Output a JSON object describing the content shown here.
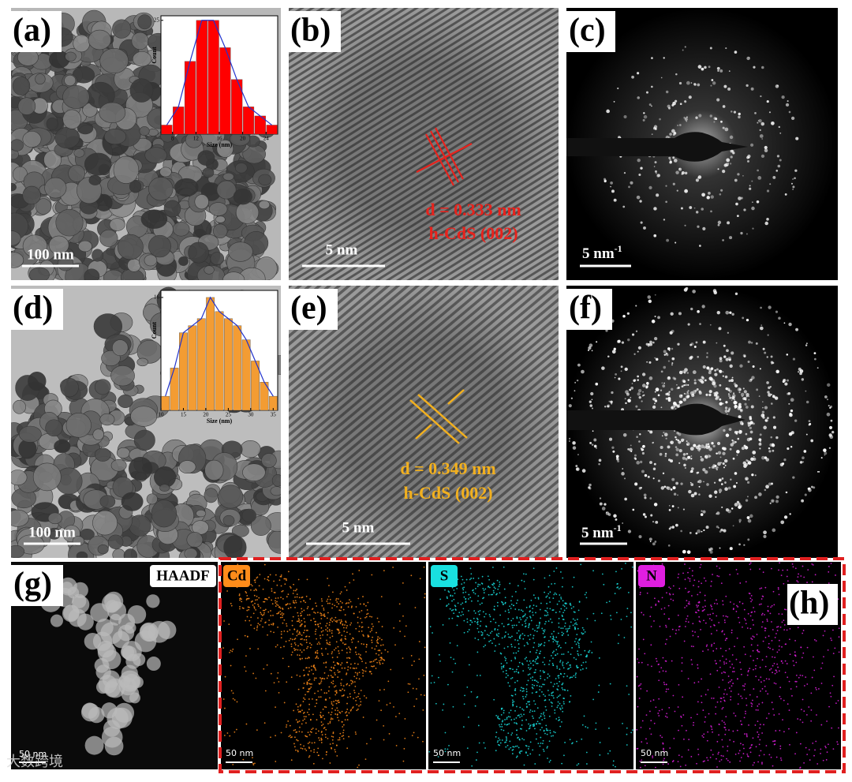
{
  "panels": {
    "a": {
      "label": "(a)",
      "scale_bar": "100 nm",
      "inset": {
        "type": "histogram",
        "x_label": "Size (nm)",
        "y_label": "Count",
        "bins": [
          6,
          8,
          10,
          12,
          14,
          16,
          18,
          20,
          22,
          24,
          26
        ],
        "values": [
          2,
          6,
          16,
          25,
          25,
          19,
          12,
          6,
          4,
          2
        ],
        "color": "#ff0000",
        "xlim": [
          6,
          26
        ],
        "ylim": [
          0,
          26
        ],
        "xticks": [
          8,
          12,
          16,
          20,
          24
        ],
        "yticks": [
          25
        ]
      }
    },
    "b": {
      "label": "(b)",
      "scale_bar": "5 nm",
      "annotation": [
        "d = 0.333 nm",
        "h-CdS (002)"
      ],
      "color": "#e8221c"
    },
    "c": {
      "label": "(c)",
      "scale_bar": {
        "text": "5 nm",
        "superscript": "-1"
      }
    },
    "d": {
      "label": "(d)",
      "scale_bar": "100 nm",
      "inset": {
        "type": "histogram",
        "x_label": "Size (nm)",
        "y_label": "Count",
        "bins": [
          10,
          12,
          14,
          16,
          18,
          20,
          22,
          24,
          26,
          28,
          30,
          32,
          34,
          36
        ],
        "values": [
          2,
          6,
          11,
          12,
          13,
          16,
          14,
          13,
          12,
          10,
          7,
          4,
          2
        ],
        "color": "#f39c33",
        "xlim": [
          10,
          36
        ],
        "ylim": [
          0,
          17
        ],
        "xticks": [
          10,
          15,
          20,
          25,
          30,
          35
        ],
        "yticks": [
          16
        ]
      }
    },
    "e": {
      "label": "(e)",
      "scale_bar": "5 nm",
      "annotation": [
        "d = 0.349 nm",
        "h-CdS (002)"
      ],
      "color": "#f2b01e"
    },
    "f": {
      "label": "(f)",
      "scale_bar": {
        "text": "5 nm",
        "superscript": "-1"
      }
    },
    "g": {
      "label": "(g)",
      "map_label": "HAADF",
      "scale_bar": "50 nm"
    },
    "h": {
      "label": "(h)",
      "maps": [
        {
          "element": "Cd",
          "color": "#ff8c1a",
          "scale_bar": "50 nm"
        },
        {
          "element": "S",
          "color": "#19e0e0",
          "scale_bar": "50 nm"
        },
        {
          "element": "N",
          "color": "#e01ee0",
          "scale_bar": "50 nm"
        }
      ]
    }
  },
  "watermark": "大数跨境"
}
